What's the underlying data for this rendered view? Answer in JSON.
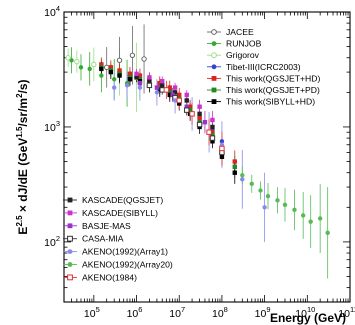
{
  "chart_data": {
    "type": "scatter",
    "xlabel": "Energy (GeV)",
    "ylabel": "E2.5 × dJ/dE (GeV1.5/sr/m2/s)",
    "xscale": "log",
    "yscale": "log",
    "xlim": [
      20000,
      100000000000
    ],
    "ylim": [
      30,
      10000
    ],
    "x_ticks": [
      {
        "base": "10",
        "exp": "5",
        "value": 100000
      },
      {
        "base": "10",
        "exp": "6",
        "value": 1000000
      },
      {
        "base": "10",
        "exp": "7",
        "value": 10000000
      },
      {
        "base": "10",
        "exp": "8",
        "value": 100000000
      },
      {
        "base": "10",
        "exp": "9",
        "value": 1000000000
      },
      {
        "base": "10",
        "exp": "10",
        "value": 10000000000
      },
      {
        "base": "10",
        "exp": "11",
        "value": 100000000000
      }
    ],
    "y_ticks": [
      {
        "base": "10",
        "exp": "2",
        "value": 100
      },
      {
        "base": "10",
        "exp": "3",
        "value": 1000
      },
      {
        "base": "10",
        "exp": "4",
        "value": 10000
      }
    ],
    "legend_top_right": [
      {
        "label": "JACEE",
        "color": "#666666",
        "marker": "open-circle"
      },
      {
        "label": "RUNJOB",
        "color": "#33aa33",
        "marker": "filled-circle"
      },
      {
        "label": "Grigorov",
        "color": "#99dd88",
        "marker": "open-circle"
      },
      {
        "label": "Tibet-III(ICRC2003)",
        "color": "#3344cc",
        "marker": "filled-circle"
      },
      {
        "label": "This work(QGSJET+HD)",
        "color": "#dd2222",
        "marker": "filled-square"
      },
      {
        "label": "This work(QGSJET+PD)",
        "color": "#228822",
        "marker": "filled-square"
      },
      {
        "label": "This work(SIBYLL+HD)",
        "color": "#000000",
        "marker": "filled-square"
      }
    ],
    "legend_bottom_left": [
      {
        "label": "KASCADE(QGSJET)",
        "color": "#222222",
        "marker": "filled-square"
      },
      {
        "label": "KASCADE(SIBYLL)",
        "color": "#cc33cc",
        "marker": "filled-square"
      },
      {
        "label": "BASJE-MAS",
        "color": "#9933cc",
        "marker": "filled-square"
      },
      {
        "label": "CASA-MIA",
        "color": "#333333",
        "marker": "open-square"
      },
      {
        "label": "AKENO(1992)(Array1)",
        "color": "#8888ee",
        "marker": "filled-circle"
      },
      {
        "label": "AKENO(1992)(Array20)",
        "color": "#55bb55",
        "marker": "filled-circle"
      },
      {
        "label": "AKENO(1984)",
        "color": "#dd3333",
        "marker": "open-square"
      }
    ],
    "series": [
      {
        "name": "RUNJOB",
        "color": "#33aa33",
        "marker": "filled-circle",
        "points": [
          [
            30000,
            3800,
            1.3
          ],
          [
            50000,
            3300,
            1.3
          ],
          [
            80000,
            3200,
            1.4
          ],
          [
            150000,
            2800,
            1.4
          ],
          [
            300000,
            2600,
            1.5
          ],
          [
            600000,
            2400,
            1.6
          ]
        ]
      },
      {
        "name": "Grigorov",
        "color": "#99dd88",
        "marker": "open-circle",
        "points": [
          [
            25000,
            4000,
            1.2
          ],
          [
            40000,
            3700,
            1.25
          ],
          [
            100000,
            3500,
            1.4
          ],
          [
            400000,
            3000,
            1.6
          ],
          [
            1000000,
            2700,
            2.0
          ]
        ]
      },
      {
        "name": "JACEE",
        "color": "#666666",
        "marker": "open-circle",
        "points": [
          [
            200000,
            3300,
            1.5
          ],
          [
            400000,
            3800,
            1.6
          ],
          [
            800000,
            4200,
            1.8
          ],
          [
            1500000,
            3900,
            2.0
          ]
        ]
      },
      {
        "name": "Tibet-III(ICRC2003)",
        "color": "#3344cc",
        "marker": "filled-circle",
        "points": [
          [
            700000,
            2800,
            1.1
          ],
          [
            1200000,
            2700,
            1.1
          ],
          [
            2000000,
            2600,
            1.1
          ],
          [
            3500000,
            2400,
            1.1
          ],
          [
            6000000,
            2100,
            1.1
          ],
          [
            10000000,
            1800,
            1.1
          ],
          [
            18000000,
            1500,
            1.1
          ],
          [
            30000000,
            1200,
            1.1
          ],
          [
            60000000,
            950,
            1.1
          ],
          [
            100000000,
            750,
            1.1
          ]
        ]
      },
      {
        "name": "This work(QGSJET+HD)",
        "color": "#dd2222",
        "marker": "filled-square",
        "points": [
          [
            150000,
            3500,
            1.15
          ],
          [
            250000,
            3300,
            1.15
          ],
          [
            400000,
            3100,
            1.15
          ],
          [
            700000,
            2900,
            1.15
          ],
          [
            1200000,
            2800,
            1.15
          ],
          [
            2000000,
            2600,
            1.15
          ],
          [
            3500000,
            2400,
            1.15
          ],
          [
            6000000,
            2200,
            1.15
          ],
          [
            10000000,
            1900,
            1.15
          ],
          [
            18000000,
            1500,
            1.15
          ],
          [
            30000000,
            1200,
            1.15
          ],
          [
            60000000,
            900,
            1.15
          ],
          [
            100000000,
            650,
            1.2
          ],
          [
            200000000,
            500,
            1.25
          ]
        ]
      },
      {
        "name": "This work(QGSJET+PD)",
        "color": "#228822",
        "marker": "filled-square",
        "points": [
          [
            150000,
            3300,
            1.15
          ],
          [
            250000,
            3100,
            1.15
          ],
          [
            400000,
            2900,
            1.15
          ],
          [
            700000,
            2700,
            1.15
          ],
          [
            1200000,
            2600,
            1.15
          ],
          [
            2000000,
            2400,
            1.15
          ],
          [
            3500000,
            2200,
            1.15
          ],
          [
            6000000,
            2000,
            1.15
          ],
          [
            10000000,
            1750,
            1.15
          ],
          [
            18000000,
            1400,
            1.15
          ],
          [
            30000000,
            1100,
            1.15
          ],
          [
            60000000,
            850,
            1.15
          ],
          [
            100000000,
            600,
            1.2
          ],
          [
            200000000,
            450,
            1.25
          ]
        ]
      },
      {
        "name": "This work(SIBYLL+HD)",
        "color": "#000000",
        "marker": "filled-square",
        "points": [
          [
            150000,
            3200,
            1.15
          ],
          [
            250000,
            3000,
            1.15
          ],
          [
            400000,
            2800,
            1.15
          ],
          [
            700000,
            2600,
            1.15
          ],
          [
            1200000,
            2500,
            1.15
          ],
          [
            2000000,
            2300,
            1.15
          ],
          [
            3500000,
            2100,
            1.15
          ],
          [
            6000000,
            1900,
            1.15
          ],
          [
            10000000,
            1600,
            1.15
          ],
          [
            18000000,
            1300,
            1.15
          ],
          [
            30000000,
            1000,
            1.15
          ],
          [
            60000000,
            750,
            1.15
          ],
          [
            100000000,
            550,
            1.2
          ],
          [
            200000000,
            400,
            1.25
          ]
        ]
      },
      {
        "name": "KASCADE(QGSJET)",
        "color": "#222222",
        "marker": "filled-square",
        "points": [
          [
            1000000,
            2700,
            1.1
          ],
          [
            2000000,
            2500,
            1.1
          ],
          [
            4000000,
            2300,
            1.1
          ],
          [
            8000000,
            2000,
            1.1
          ],
          [
            15000000,
            1700,
            1.1
          ],
          [
            30000000,
            1300,
            1.15
          ],
          [
            60000000,
            1000,
            1.2
          ]
        ]
      },
      {
        "name": "KASCADE(SIBYLL)",
        "color": "#cc33cc",
        "marker": "filled-square",
        "points": [
          [
            1000000,
            2900,
            1.1
          ],
          [
            2000000,
            2700,
            1.1
          ],
          [
            4000000,
            2500,
            1.1
          ],
          [
            8000000,
            2200,
            1.1
          ],
          [
            15000000,
            1900,
            1.1
          ],
          [
            30000000,
            1500,
            1.15
          ],
          [
            60000000,
            1150,
            1.2
          ]
        ]
      },
      {
        "name": "BASJE-MAS",
        "color": "#9933cc",
        "marker": "filled-square",
        "points": [
          [
            1200000,
            2400,
            1.15
          ],
          [
            3000000,
            2200,
            1.15
          ],
          [
            7000000,
            1900,
            1.15
          ],
          [
            15000000,
            1500,
            1.2
          ],
          [
            40000000,
            1100,
            1.25
          ]
        ]
      },
      {
        "name": "CASA-MIA",
        "color": "#333333",
        "marker": "open-square",
        "points": [
          [
            2000000,
            2300,
            1.1
          ],
          [
            4000000,
            2100,
            1.1
          ],
          [
            8000000,
            1800,
            1.1
          ],
          [
            15000000,
            1400,
            1.1
          ],
          [
            30000000,
            1050,
            1.15
          ],
          [
            60000000,
            800,
            1.2
          ],
          [
            100000000,
            600,
            1.3
          ]
        ]
      },
      {
        "name": "AKENO(1992)(Array1)",
        "color": "#8888ee",
        "marker": "filled-circle",
        "points": [
          [
            300000,
            2200,
            1.3
          ],
          [
            600000,
            2300,
            1.3
          ],
          [
            1200000,
            2200,
            1.3
          ],
          [
            3000000,
            2000,
            1.3
          ],
          [
            8000000,
            1700,
            1.3
          ],
          [
            20000000,
            1300,
            1.4
          ],
          [
            50000000,
            900,
            1.5
          ],
          [
            100000000,
            700,
            1.6
          ],
          [
            300000000,
            350,
            1.8
          ],
          [
            1000000000,
            200,
            2.0
          ]
        ]
      },
      {
        "name": "AKENO(1992)(Array20)",
        "color": "#55bb55",
        "marker": "filled-circle",
        "points": [
          [
            300000000,
            380,
            1.2
          ],
          [
            500000000,
            320,
            1.2
          ],
          [
            800000000,
            280,
            1.2
          ],
          [
            1200000000,
            250,
            1.3
          ],
          [
            2000000000,
            230,
            1.3
          ],
          [
            3000000000,
            210,
            1.4
          ],
          [
            5000000000,
            190,
            1.5
          ],
          [
            8000000000,
            170,
            1.6
          ],
          [
            12000000000,
            150,
            1.7
          ],
          [
            20000000000,
            160,
            2.0
          ],
          [
            30000000000,
            120,
            2.5
          ]
        ]
      },
      {
        "name": "AKENO(1984)",
        "color": "#dd3333",
        "marker": "open-square",
        "points": [
          [
            5000000,
            2100,
            1.2
          ],
          [
            10000000,
            1700,
            1.2
          ],
          [
            20000000,
            1300,
            1.25
          ],
          [
            50000000,
            900,
            1.3
          ],
          [
            100000000,
            650,
            1.4
          ]
        ]
      }
    ]
  }
}
